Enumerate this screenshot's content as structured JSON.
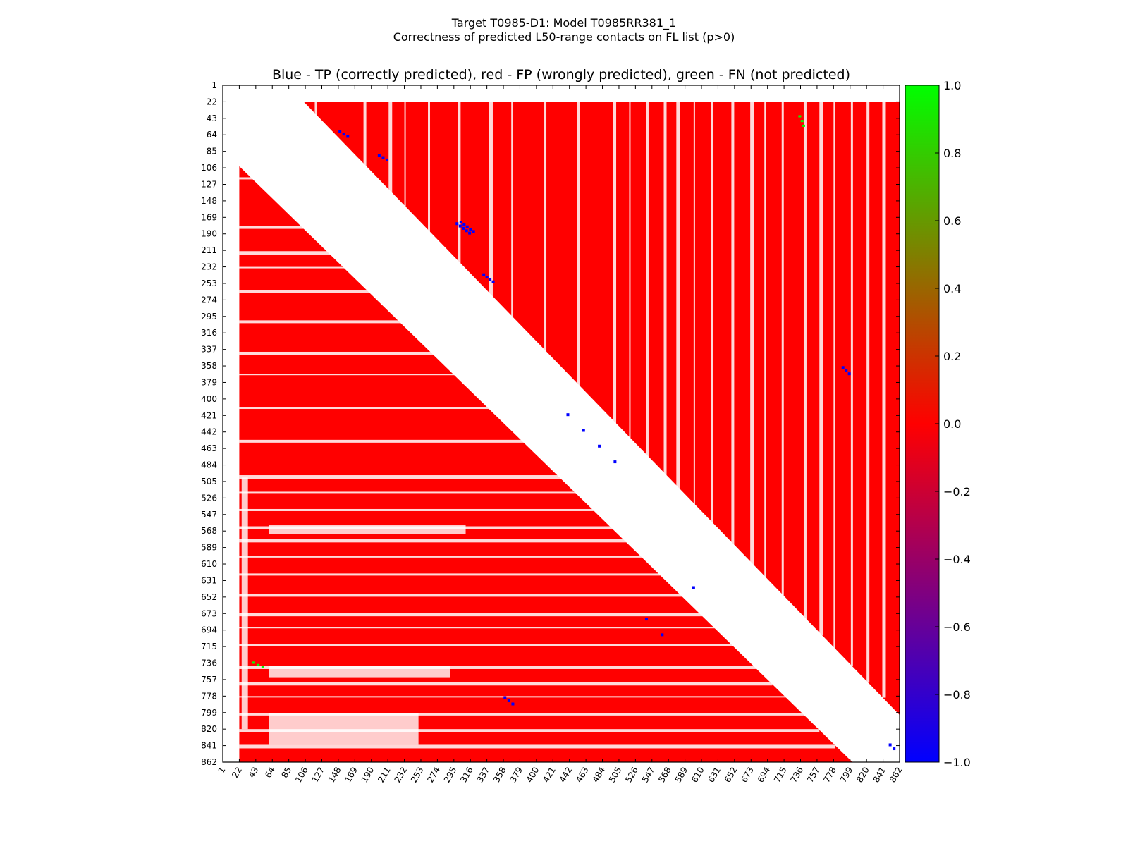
{
  "chart_data": {
    "type": "heatmap",
    "suptitle_line1": "Target T0985-D1: Model T0985RR381_1",
    "suptitle_line2": "Correctness of predicted L50-range contacts on FL list (p>0)",
    "title": "Blue - TP (correctly predicted), red - FP (wrongly predicted), green - FN (not predicted)",
    "xlabel": "",
    "ylabel": "",
    "residue_range": [
      1,
      862
    ],
    "ticks": [
      1,
      22,
      43,
      64,
      85,
      106,
      127,
      148,
      169,
      190,
      211,
      232,
      253,
      274,
      295,
      316,
      337,
      358,
      379,
      400,
      421,
      442,
      463,
      484,
      505,
      526,
      547,
      568,
      589,
      610,
      631,
      652,
      673,
      694,
      715,
      736,
      757,
      778,
      799,
      820,
      841,
      862
    ],
    "tick_labels": [
      "1",
      "22",
      "43",
      "64",
      "85",
      "106",
      "127",
      "148",
      "169",
      "190",
      "211",
      "232",
      "253",
      "274",
      "295",
      "316",
      "337",
      "358",
      "379",
      "400",
      "421",
      "442",
      "463",
      "484",
      "505",
      "526",
      "547",
      "568",
      "589",
      "610",
      "631",
      "652",
      "673",
      "694",
      "715",
      "736",
      "757",
      "778",
      "799",
      "820",
      "841",
      "862"
    ],
    "diagonal_band_halfwidth": 60,
    "colorbar": {
      "range": [
        -1.0,
        1.0
      ],
      "ticks": [
        1.0,
        0.8,
        0.6,
        0.4,
        0.2,
        0.0,
        -0.2,
        -0.4,
        -0.6,
        -0.8,
        -1.0
      ],
      "tick_labels": [
        "1.0",
        "0.8",
        "0.6",
        "0.4",
        "0.2",
        "0.0",
        "−0.2",
        "−0.4",
        "−0.6",
        "−0.8",
        "−1.0"
      ],
      "colors": [
        "#0000ff",
        "#ff0000",
        "#00ff00"
      ]
    },
    "categories": [
      "TP",
      "FP",
      "FN"
    ],
    "colors": {
      "tp": "#0000ff",
      "fp": "#ff0000",
      "fn": "#00ff00",
      "empty": "#ffffff"
    },
    "tp_contacts": [
      [
        303,
        180
      ],
      [
        307,
        183
      ],
      [
        311,
        186
      ],
      [
        315,
        189
      ],
      [
        299,
        177
      ],
      [
        320,
        187
      ],
      [
        316,
        184
      ],
      [
        312,
        181
      ],
      [
        308,
        178
      ],
      [
        304,
        175
      ],
      [
        337,
        245
      ],
      [
        341,
        248
      ],
      [
        345,
        251
      ],
      [
        333,
        242
      ],
      [
        200,
        90
      ],
      [
        205,
        93
      ],
      [
        210,
        96
      ],
      [
        150,
        60
      ],
      [
        155,
        63
      ],
      [
        160,
        66
      ],
      [
        360,
        780
      ],
      [
        365,
        784
      ],
      [
        370,
        788
      ],
      [
        790,
        360
      ],
      [
        794,
        364
      ],
      [
        798,
        368
      ],
      [
        440,
        420
      ],
      [
        460,
        440
      ],
      [
        480,
        460
      ],
      [
        500,
        480
      ],
      [
        540,
        680
      ],
      [
        560,
        700
      ],
      [
        600,
        640
      ],
      [
        850,
        840
      ],
      [
        855,
        845
      ]
    ],
    "fn_contacts": [
      [
        735,
        40
      ],
      [
        738,
        46
      ],
      [
        740,
        52
      ],
      [
        40,
        735
      ],
      [
        46,
        738
      ],
      [
        52,
        740
      ]
    ]
  }
}
